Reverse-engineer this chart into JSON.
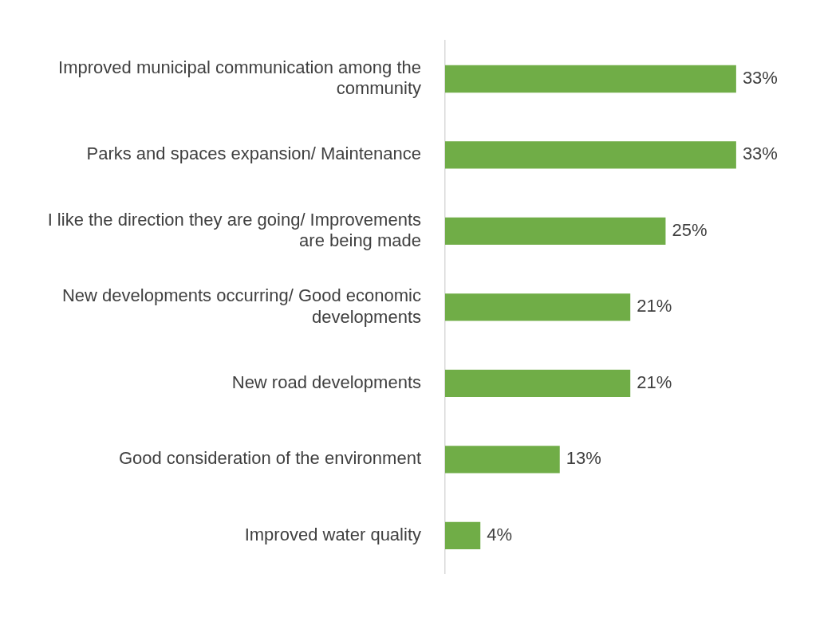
{
  "chart_data": {
    "type": "bar",
    "orientation": "horizontal",
    "categories": [
      "Improved municipal communication among the community",
      "Parks and spaces expansion/ Maintenance",
      "I like the direction they are going/ Improvements are being made",
      "New developments occurring/ Good economic developments",
      "New road developments",
      "Good consideration of the environment",
      "Improved water quality"
    ],
    "values": [
      33,
      33,
      25,
      21,
      21,
      13,
      4
    ],
    "value_labels": [
      "33%",
      "33%",
      "25%",
      "21%",
      "21%",
      "13%",
      "4%"
    ],
    "color": "#70ad47",
    "legend": false
  }
}
